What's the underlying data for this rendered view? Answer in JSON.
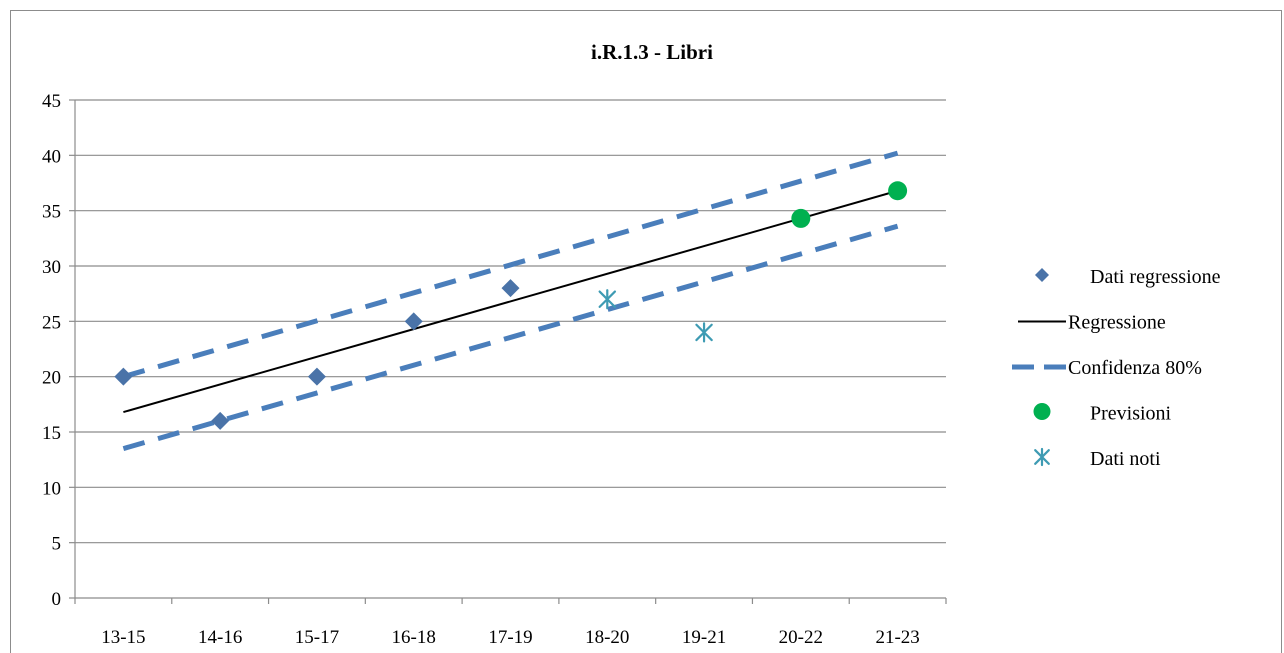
{
  "chart_data": {
    "type": "line",
    "title": "i.R.1.3 - Libri",
    "categories": [
      "13-15",
      "14-16",
      "15-17",
      "16-18",
      "17-19",
      "18-20",
      "19-21",
      "20-22",
      "21-23"
    ],
    "ylim": [
      0,
      45
    ],
    "yticks": [
      0,
      5,
      10,
      15,
      20,
      25,
      30,
      35,
      40,
      45
    ],
    "grid": true,
    "legend_position": "right",
    "series": [
      {
        "name": "Dati regressione",
        "kind": "marker-diamond",
        "color": "#4a73a8",
        "points": [
          [
            "13-15",
            20
          ],
          [
            "14-16",
            16
          ],
          [
            "15-17",
            20
          ],
          [
            "16-18",
            25
          ],
          [
            "17-19",
            28
          ]
        ]
      },
      {
        "name": "Regressione",
        "kind": "line-solid",
        "color": "#000000",
        "points": [
          [
            "13-15",
            16.8
          ],
          [
            "21-23",
            36.8
          ]
        ]
      },
      {
        "name": "Confidenza 80%",
        "kind": "line-dashed",
        "color": "#4a7ebb",
        "upper": [
          [
            "13-15",
            20
          ],
          [
            "21-23",
            40.2
          ]
        ],
        "lower": [
          [
            "13-15",
            13.5
          ],
          [
            "21-23",
            33.6
          ]
        ]
      },
      {
        "name": "Previsioni",
        "kind": "marker-circle",
        "color": "#00b050",
        "points": [
          [
            "20-22",
            34.3
          ],
          [
            "21-23",
            36.8
          ]
        ]
      },
      {
        "name": "Dati noti",
        "kind": "marker-asterisk",
        "color": "#3e9bb3",
        "points": [
          [
            "18-20",
            27
          ],
          [
            "19-21",
            24
          ]
        ]
      }
    ]
  }
}
